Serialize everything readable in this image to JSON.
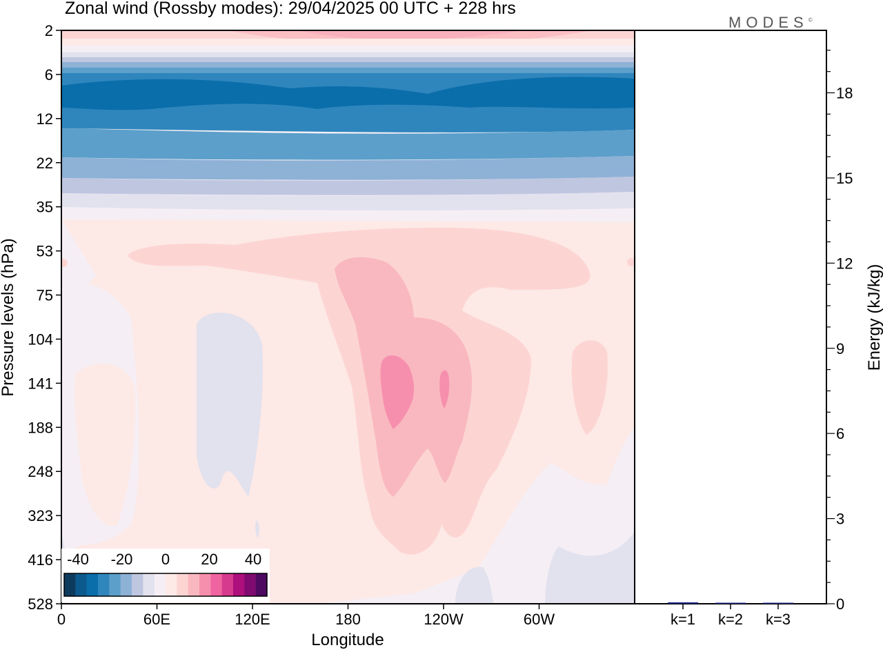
{
  "header": {
    "title": "Zonal wind (Rossby modes):  29/04/2025  00 UTC  + 228 hrs",
    "brand": "MODES",
    "brand_mark": "©"
  },
  "chart_data": [
    {
      "type": "heatmap",
      "title": "Zonal wind (Rossby modes):  29/04/2025  00 UTC  + 228 hrs",
      "xlabel": "Longitude",
      "ylabel": "Pressure levels (hPa)",
      "x_ticks": [
        "0",
        "60E",
        "120E",
        "180",
        "120W",
        "60W"
      ],
      "y_ticks": [
        "2",
        "6",
        "12",
        "22",
        "35",
        "53",
        "75",
        "104",
        "141",
        "188",
        "248",
        "323",
        "416",
        "528"
      ],
      "y_scale": "log (model levels)",
      "colorbar": {
        "tick_labels": [
          "-40",
          "-20",
          "0",
          "20",
          "40"
        ],
        "colors": [
          "#0d3b5e",
          "#0b5a8e",
          "#0a6eaa",
          "#2f86bd",
          "#5b9fca",
          "#8eb1d6",
          "#bfc6e0",
          "#e2e1ee",
          "#f5eff5",
          "#fde9e6",
          "#fcd5d3",
          "#f9b8bf",
          "#f68fae",
          "#ef64a0",
          "#d63a8e",
          "#ad0f7c",
          "#7f0b70",
          "#4d0a60"
        ]
      },
      "grid": false
    },
    {
      "type": "bar",
      "categories": [
        "k=1",
        "k=2",
        "k=3"
      ],
      "values": [
        0.05,
        0.02,
        0.01
      ],
      "ylabel": "Energy (kJ/kg)",
      "ylim": [
        0,
        20.2
      ],
      "y_ticks": [
        "0",
        "3",
        "6",
        "9",
        "12",
        "15",
        "18"
      ],
      "bar_color": "#1a237e"
    }
  ]
}
